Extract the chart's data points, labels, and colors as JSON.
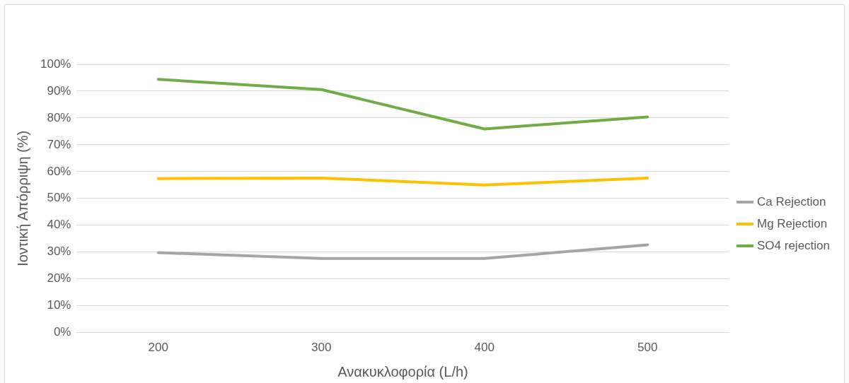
{
  "chart_data": {
    "type": "line",
    "xlabel": "Ανακυκλοφορία (L/h)",
    "ylabel": "Ιοντική Απόρριψη (%)",
    "categories": [
      "200",
      "300",
      "400",
      "500"
    ],
    "series": [
      {
        "name": "Ca Rejection",
        "color": "#a5a5a5",
        "values": [
          29.8,
          27.6,
          27.6,
          32.7
        ]
      },
      {
        "name": "Mg Rejection",
        "color": "#ffc000",
        "values": [
          57.4,
          57.6,
          55,
          57.6
        ]
      },
      {
        "name": "SO4 rejection",
        "color": "#70ad47",
        "values": [
          94.4,
          90.6,
          75.9,
          80.4
        ]
      }
    ],
    "ylim": [
      0,
      100
    ],
    "yticks": [
      {
        "value": 0,
        "label": "0%"
      },
      {
        "value": 10,
        "label": "10%"
      },
      {
        "value": 20,
        "label": "20%"
      },
      {
        "value": 30,
        "label": "30%"
      },
      {
        "value": 40,
        "label": "40%"
      },
      {
        "value": 50,
        "label": "50%"
      },
      {
        "value": 60,
        "label": "60%"
      },
      {
        "value": 70,
        "label": "70%"
      },
      {
        "value": 80,
        "label": "80%"
      },
      {
        "value": 90,
        "label": "90%"
      },
      {
        "value": 100,
        "label": "100%"
      }
    ],
    "grid": "y",
    "legend": "right",
    "marker": "none",
    "line_style": "solid"
  }
}
